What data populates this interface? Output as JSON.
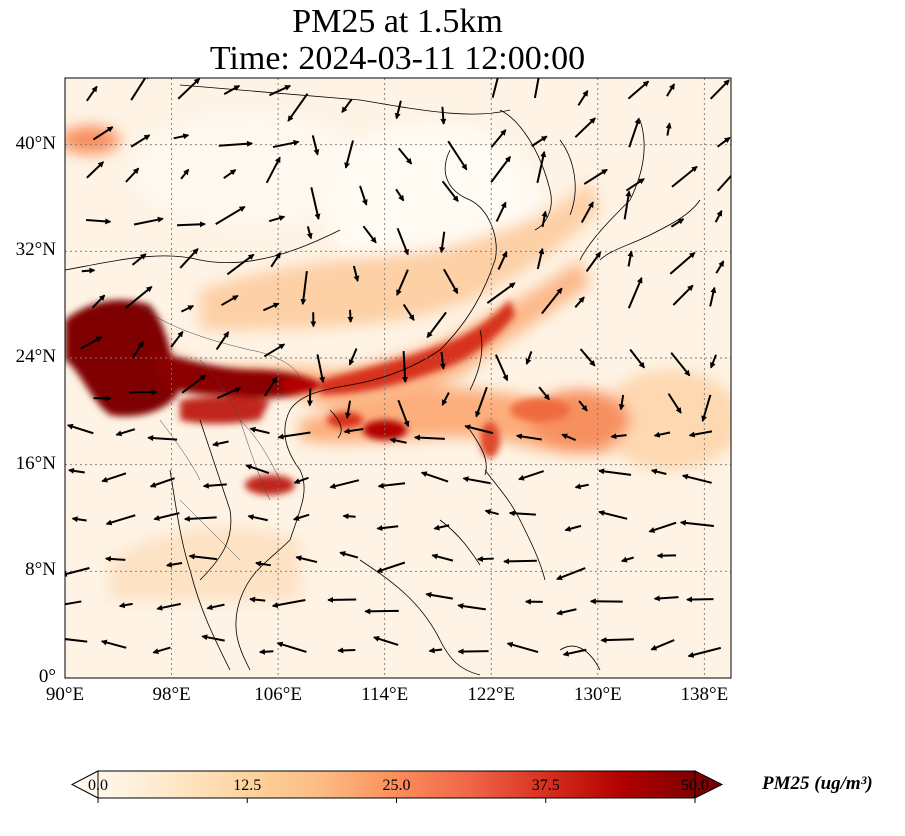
{
  "title": {
    "line1": "PM25 at 1.5km",
    "line2": "Time: 2024-03-11 12:00:00"
  },
  "map": {
    "lon_ticks": [
      "90°E",
      "98°E",
      "106°E",
      "114°E",
      "122°E",
      "130°E",
      "138°E"
    ],
    "lat_ticks": [
      "0°",
      "8°N",
      "16°N",
      "24°N",
      "32°N",
      "40°N"
    ],
    "lon_values": [
      90,
      98,
      106,
      114,
      122,
      130,
      138
    ],
    "lat_values": [
      0,
      8,
      16,
      24,
      32,
      40
    ],
    "extent": {
      "lon_min": 90,
      "lon_max": 140,
      "lat_min": 0,
      "lat_max": 45
    },
    "gridlines": true,
    "wind_vectors": true
  },
  "colorbar": {
    "title": "PM25 (ug/m³)",
    "ticks": [
      "0.0",
      "12.5",
      "25.0",
      "37.5",
      "50.0"
    ],
    "min": 0,
    "max": 50,
    "colormap": "OrRd",
    "colors": [
      "#fff7ec",
      "#fee8c8",
      "#fdd49e",
      "#fdbb84",
      "#fc8d59",
      "#ef6548",
      "#d7301f",
      "#b30000",
      "#7f0000"
    ],
    "extend": "both"
  }
}
